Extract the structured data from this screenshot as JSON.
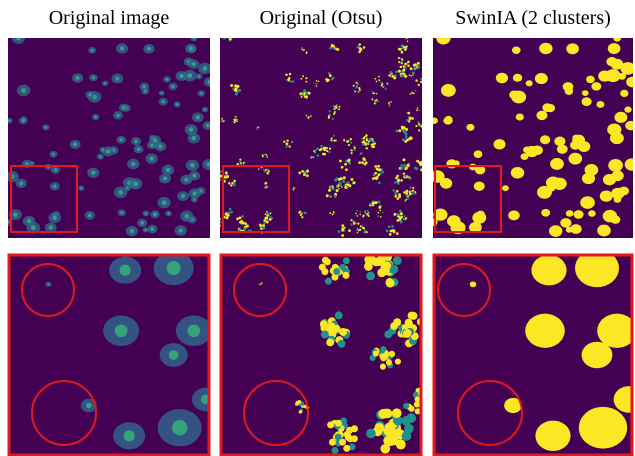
{
  "columns": [
    {
      "title": "Original image"
    },
    {
      "title": "Original (Otsu)"
    },
    {
      "title": "SwinIA (2 clusters)"
    }
  ]
}
